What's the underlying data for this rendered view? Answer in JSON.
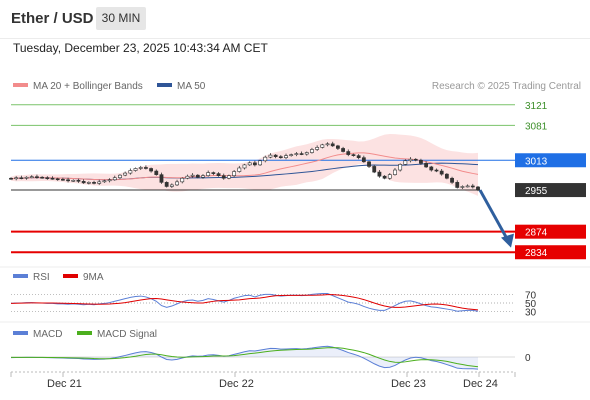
{
  "header": {
    "pair": "Ether / USD",
    "timeframe": "30 MIN"
  },
  "timestamp": "Tuesday, December 23, 2025 10:43:34 AM CET",
  "legend": {
    "ma20_label": "MA 20 + Bollinger Bands",
    "ma50_label": "MA 50",
    "ma20_color": "#f28c8c",
    "ma50_color": "#2f5597"
  },
  "credit": "Research © 2025 Trading Central",
  "rsi_panel": {
    "rsi_label": "RSI",
    "ma_label": "9MA",
    "rsi_color": "#5b7fd6",
    "ma_color": "#e00000",
    "levels": [
      "70",
      "50",
      "30"
    ]
  },
  "macd_panel": {
    "macd_label": "MACD",
    "signal_label": "MACD Signal",
    "macd_color": "#5b7fd6",
    "signal_color": "#4caf1e",
    "zero_label": "0"
  },
  "x_axis": [
    "Dec 21",
    "Dec 22",
    "Dec 23",
    "Dec 24"
  ],
  "chart_data": {
    "type": "candlestick",
    "ylim": [
      2815,
      3140
    ],
    "levels": [
      {
        "label": "3121",
        "value": 3121,
        "color": "#7ac36a",
        "kind": "resistance"
      },
      {
        "label": "3081",
        "value": 3081,
        "color": "#7ac36a",
        "kind": "resistance"
      },
      {
        "label": "3013",
        "value": 3013,
        "color": "#1f6fe5",
        "kind": "pivot"
      },
      {
        "label": "2955",
        "value": 2955,
        "color": "#333333",
        "kind": "last-price"
      },
      {
        "label": "2874",
        "value": 2874,
        "color": "#e60000",
        "kind": "support"
      },
      {
        "label": "2834",
        "value": 2834,
        "color": "#e60000",
        "kind": "support"
      }
    ],
    "arrow": {
      "from": 2955,
      "to": 2845,
      "direction": "down",
      "color": "#2f5f9e"
    },
    "close": [
      2977,
      2979,
      2978,
      2980,
      2981,
      2980,
      2979,
      2978,
      2977,
      2976,
      2975,
      2973,
      2974,
      2972,
      2969,
      2970,
      2968,
      2971,
      2973,
      2975,
      2979,
      2984,
      2988,
      2993,
      2997,
      2999,
      2997,
      2992,
      2985,
      2970,
      2962,
      2965,
      2971,
      2978,
      2982,
      2984,
      2980,
      2983,
      2989,
      2987,
      2983,
      2978,
      2983,
      2991,
      2998,
      3004,
      3008,
      3004,
      3012,
      3019,
      3023,
      3020,
      3018,
      3022,
      3024,
      3026,
      3025,
      3028,
      3034,
      3038,
      3043,
      3045,
      3041,
      3036,
      3030,
      3024,
      3022,
      3018,
      3010,
      3001,
      2990,
      2982,
      2978,
      2985,
      2994,
      3005,
      3012,
      3015,
      3013,
      3007,
      3000,
      2994,
      2992,
      2986,
      2978,
      2970,
      2960,
      2962,
      2963,
      2961,
      2955
    ],
    "rsi": [
      49,
      50,
      50,
      51,
      51,
      50,
      50,
      49,
      49,
      48,
      48,
      47,
      48,
      47,
      46,
      47,
      46,
      48,
      49,
      51,
      54,
      57,
      60,
      63,
      65,
      66,
      64,
      60,
      54,
      44,
      40,
      43,
      48,
      53,
      56,
      57,
      54,
      56,
      60,
      58,
      55,
      52,
      56,
      61,
      64,
      67,
      68,
      64,
      68,
      70,
      70,
      68,
      66,
      67,
      68,
      68,
      67,
      68,
      70,
      71,
      72,
      72,
      67,
      62,
      57,
      52,
      50,
      47,
      42,
      38,
      35,
      33,
      33,
      38,
      44,
      50,
      54,
      55,
      52,
      48,
      44,
      41,
      40,
      38,
      36,
      34,
      31,
      32,
      33,
      33,
      31
    ],
    "rsi_levels": [
      70,
      50,
      30
    ],
    "macd": [
      -0.5,
      -0.4,
      -0.4,
      -0.3,
      -0.3,
      -0.4,
      -0.4,
      -0.5,
      -0.6,
      -0.7,
      -0.8,
      -1.0,
      -1.1,
      -1.2,
      -1.5,
      -1.6,
      -1.8,
      -1.7,
      -1.6,
      -1.2,
      -0.6,
      0.3,
      1.2,
      2.2,
      3.2,
      3.9,
      4.1,
      3.5,
      2.3,
      0.0,
      -1.9,
      -2.3,
      -1.8,
      -0.8,
      0.2,
      0.9,
      0.6,
      0.8,
      1.5,
      1.7,
      1.3,
      0.6,
      1.0,
      2.0,
      3.0,
      4.0,
      4.8,
      4.6,
      5.3,
      6.0,
      6.6,
      6.5,
      6.1,
      6.2,
      6.3,
      6.4,
      6.2,
      6.4,
      6.9,
      7.5,
      8.0,
      8.3,
      7.6,
      6.4,
      5.0,
      3.4,
      2.2,
      0.9,
      -0.9,
      -3.0,
      -5.2,
      -7.0,
      -8.2,
      -7.9,
      -6.5,
      -4.3,
      -2.3,
      -0.8,
      -0.2,
      -0.6,
      -1.6,
      -2.8,
      -3.5,
      -4.5,
      -5.8,
      -7.1,
      -8.6,
      -8.9,
      -9.0,
      -9.0,
      -9.3
    ],
    "macd_signal": [
      -0.3,
      -0.3,
      -0.3,
      -0.3,
      -0.3,
      -0.3,
      -0.3,
      -0.4,
      -0.4,
      -0.5,
      -0.5,
      -0.6,
      -0.7,
      -0.8,
      -0.9,
      -1.0,
      -1.2,
      -1.3,
      -1.3,
      -1.3,
      -1.2,
      -0.9,
      -0.5,
      0.0,
      0.6,
      1.3,
      1.9,
      2.2,
      2.2,
      1.7,
      1.0,
      0.4,
      0.0,
      -0.2,
      -0.1,
      0.1,
      0.2,
      0.3,
      0.5,
      0.8,
      0.9,
      0.8,
      0.9,
      1.1,
      1.5,
      2.0,
      2.6,
      3.0,
      3.5,
      4.0,
      4.5,
      4.9,
      5.2,
      5.4,
      5.6,
      5.8,
      5.9,
      6.0,
      6.2,
      6.5,
      6.8,
      7.1,
      7.2,
      7.1,
      6.7,
      6.0,
      5.3,
      4.4,
      3.4,
      2.1,
      0.6,
      -0.9,
      -2.3,
      -3.4,
      -4.0,
      -4.1,
      -3.7,
      -3.1,
      -2.5,
      -2.1,
      -2.0,
      -2.1,
      -2.4,
      -2.8,
      -3.4,
      -4.2,
      -5.1,
      -5.8,
      -6.5,
      -7.0,
      -7.5
    ]
  }
}
